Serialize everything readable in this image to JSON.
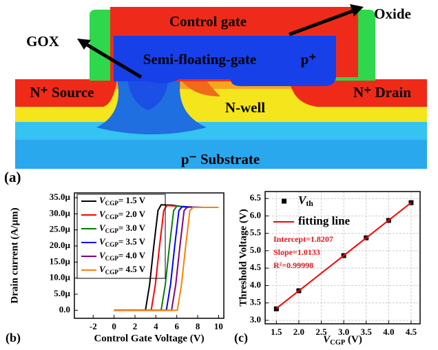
{
  "diagram": {
    "control_gate": "Control gate",
    "oxide": "Oxide",
    "gox": "GOX",
    "semi_floating_gate": "Semi-floating-gate",
    "p_plus": "p⁺",
    "n_source": "N⁺ Source",
    "n_drain": "N⁺ Drain",
    "n_well": "N-well",
    "substrate": "p⁻ Substrate",
    "panel_label": "(a)"
  },
  "chart_data": [
    {
      "type": "line",
      "panel_label": "(b)",
      "x_label": "Control Gate Voltage (V)",
      "y_label": "Drain current (A/µm)",
      "xlim": [
        -3.8,
        10.5
      ],
      "xticks": [
        -2,
        0,
        2,
        4,
        6,
        8,
        10
      ],
      "ylim": [
        -2.5e-06,
        3.65e-05
      ],
      "yticks": [
        {
          "value": 0,
          "label": "0.0"
        },
        {
          "value": 5e-06,
          "label": "5.0µ"
        },
        {
          "value": 1e-05,
          "label": "10.0µ"
        },
        {
          "value": 1.5e-05,
          "label": "15.0µ"
        },
        {
          "value": 2e-05,
          "label": "20.0µ"
        },
        {
          "value": 2.5e-05,
          "label": "25.0µ"
        },
        {
          "value": 3e-05,
          "label": "30.0µ"
        },
        {
          "value": 3.5e-05,
          "label": "35.0µ"
        }
      ],
      "legend": "upper left",
      "series": [
        {
          "name": "VCGP= 1.5 V",
          "color": "#000000",
          "x": [
            0,
            3.0,
            3.4,
            3.8,
            4.2,
            4.5,
            5.5,
            6.6
          ],
          "values": [
            0,
            0,
            8e-06,
            2e-05,
            3.1e-05,
            3.28e-05,
            3.27e-05,
            3.22e-05
          ]
        },
        {
          "name": "VCGP= 2.0 V",
          "color": "#ff0000",
          "x": [
            0,
            3.55,
            3.95,
            4.35,
            4.75,
            5.05,
            6.05,
            7.15
          ],
          "values": [
            0,
            0,
            8e-06,
            2e-05,
            3.1e-05,
            3.26e-05,
            3.24e-05,
            3.2e-05
          ]
        },
        {
          "name": "VCGP= 3.0 V",
          "color": "#008000",
          "x": [
            0,
            4.5,
            4.9,
            5.3,
            5.7,
            6.0,
            7.0,
            8.1
          ],
          "values": [
            0,
            0,
            8e-06,
            2e-05,
            3.1e-05,
            3.24e-05,
            3.22e-05,
            3.2e-05
          ]
        },
        {
          "name": "VCGP= 3.5 V",
          "color": "#0000ff",
          "x": [
            0,
            5.0,
            5.4,
            5.8,
            6.2,
            6.5,
            7.5,
            8.6
          ],
          "values": [
            0,
            0,
            8e-06,
            2e-05,
            3.1e-05,
            3.22e-05,
            3.21e-05,
            3.2e-05
          ]
        },
        {
          "name": "VCGP= 4.0 V",
          "color": "#800080",
          "x": [
            0,
            5.5,
            5.9,
            6.3,
            6.7,
            7.0,
            8.0,
            9.1
          ],
          "values": [
            0,
            0,
            8e-06,
            2e-05,
            3.1e-05,
            3.21e-05,
            3.2e-05,
            3.2e-05
          ]
        },
        {
          "name": "VCGP= 4.5 V",
          "color": "#ff8000",
          "x": [
            0,
            6.05,
            6.45,
            6.85,
            7.25,
            7.55,
            8.5,
            10
          ],
          "values": [
            0,
            0,
            8e-06,
            2e-05,
            3.1e-05,
            3.2e-05,
            3.2e-05,
            3.2e-05
          ]
        }
      ]
    },
    {
      "type": "scatter",
      "panel_label": "(c)",
      "x_label": "VCGP (V)",
      "y_label": "Threshold Voltage (V)",
      "xlim": [
        1.25,
        4.7
      ],
      "xticks": [
        1.5,
        {
          "value": 2,
          "label": "2.0"
        },
        2.5,
        {
          "value": 3,
          "label": "3.0"
        },
        3.5,
        {
          "value": 4,
          "label": "4.0"
        },
        4.5
      ],
      "ylim": [
        2.9,
        6.7
      ],
      "yticks": [
        {
          "value": 3,
          "label": "3.0"
        },
        3.5,
        {
          "value": 4,
          "label": "4.0"
        },
        4.5,
        {
          "value": 5,
          "label": "5.0"
        },
        5.5,
        {
          "value": 6,
          "label": "6.0"
        },
        6.5
      ],
      "grid": true,
      "legend": "upper left",
      "annotations": [
        "Intercept=1.8207",
        "Slope=1.0133",
        "R²=0.99998"
      ],
      "annotation_color": "#e8161b",
      "series": [
        {
          "name": "Vth",
          "color": "#000000",
          "marker": "square",
          "x": [
            1.5,
            2.0,
            3.0,
            3.5,
            4.0,
            4.5
          ],
          "values": [
            3.33,
            3.85,
            4.86,
            5.37,
            5.87,
            6.38
          ]
        },
        {
          "name": "fitting line",
          "color": "#ff0000",
          "type": "line",
          "x": [
            1.5,
            4.5
          ],
          "values": [
            3.341,
            6.381
          ]
        }
      ]
    }
  ]
}
